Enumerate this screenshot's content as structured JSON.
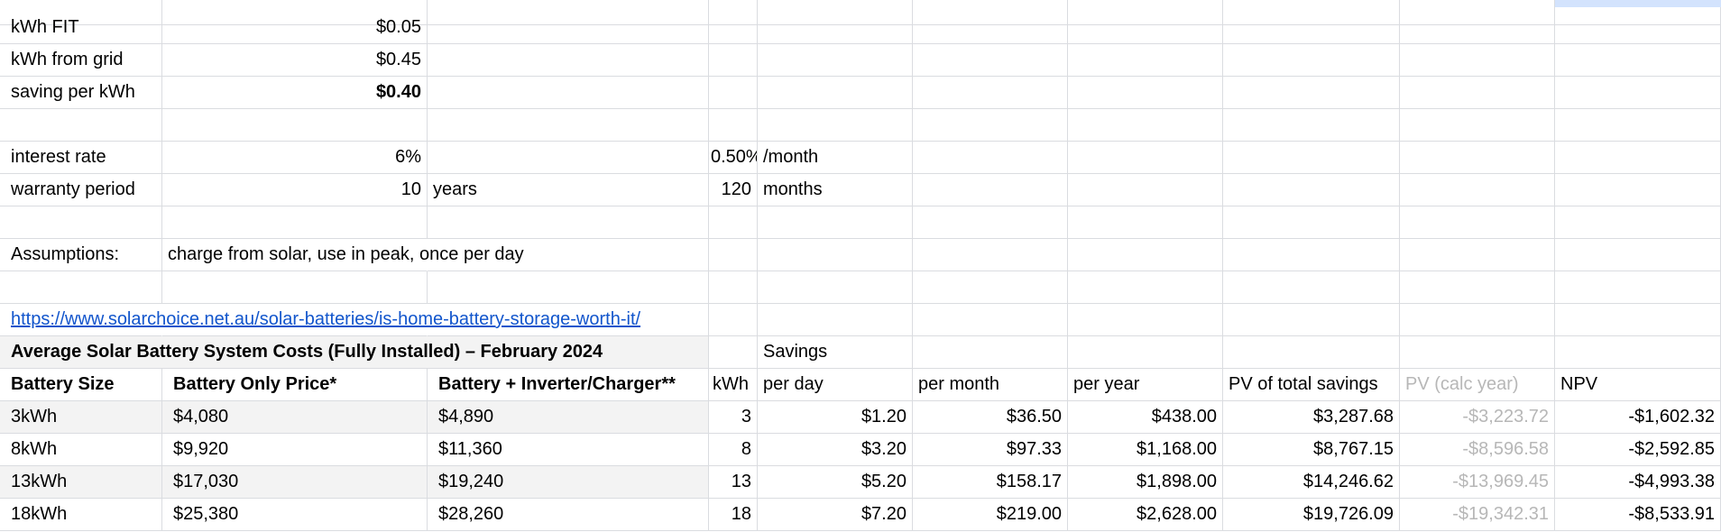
{
  "rates": {
    "fit_label": "kWh FIT",
    "fit_value": "$0.05",
    "grid_label": "kWh from grid",
    "grid_value": "$0.45",
    "saving_label": "saving per kWh",
    "saving_value": "$0.40"
  },
  "interest": {
    "label": "interest rate",
    "annual": "6%",
    "monthly": "0.50%",
    "monthly_unit": "/month"
  },
  "warranty": {
    "label": "warranty period",
    "years": "10",
    "years_unit": "years",
    "months": "120",
    "months_unit": "months"
  },
  "assumptions": {
    "label": "Assumptions:",
    "text": "charge from solar, use in peak, once per day"
  },
  "source_link": "https://www.solarchoice.net.au/solar-batteries/is-home-battery-storage-worth-it/",
  "table": {
    "title": "Average Solar Battery System Costs (Fully Installed) – February 2024",
    "savings_label": "Savings",
    "headers": [
      "Battery Size",
      "Battery Only Price*",
      "Battery + Inverter/Charger**",
      "kWh",
      "per day",
      "per month",
      "per year",
      "PV of total savings",
      "PV (calc year)",
      "NPV"
    ],
    "rows": [
      [
        "3kWh",
        "$4,080",
        "$4,890",
        "3",
        "$1.20",
        "$36.50",
        "$438.00",
        "$3,287.68",
        "-$3,223.72",
        "-$1,602.32"
      ],
      [
        "8kWh",
        "$9,920",
        "$11,360",
        "8",
        "$3.20",
        "$97.33",
        "$1,168.00",
        "$8,767.15",
        "-$8,596.58",
        "-$2,592.85"
      ],
      [
        "13kWh",
        "$17,030",
        "$19,240",
        "13",
        "$5.20",
        "$158.17",
        "$1,898.00",
        "$14,246.62",
        "-$13,969.45",
        "-$4,993.38"
      ],
      [
        "18kWh",
        "$25,380",
        "$28,260",
        "18",
        "$7.20",
        "$219.00",
        "$2,628.00",
        "$19,726.09",
        "-$19,342.31",
        "-$8,533.91"
      ]
    ]
  }
}
